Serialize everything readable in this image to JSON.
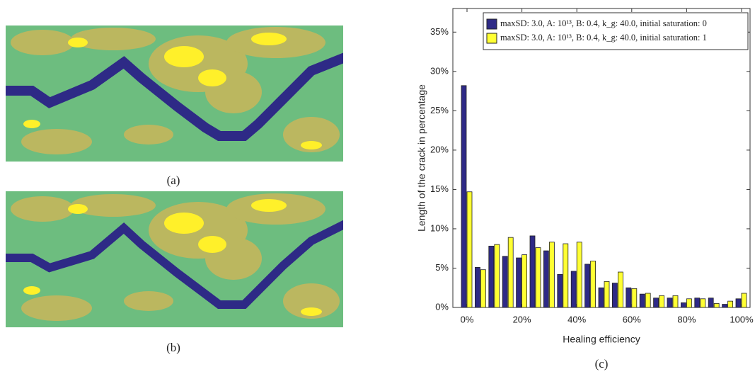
{
  "captions": [
    "(a)",
    "(b)",
    "(c)"
  ],
  "chart_data": {
    "type": "bar",
    "xlabel": "Healing efficiency",
    "ylabel": "Length of the crack in percentage",
    "categories": [
      "0%",
      null,
      null,
      null,
      "20%",
      null,
      null,
      null,
      "40%",
      null,
      null,
      null,
      "60%",
      null,
      null,
      null,
      "80%",
      null,
      null,
      null,
      "100%"
    ],
    "series": [
      {
        "name": "maxSD: 3.0, A: 10¹³, B: 0.4, k_g: 40.0, initial saturation: 0",
        "color": "#2e2a86",
        "values": [
          28.2,
          5.1,
          7.8,
          6.5,
          6.3,
          9.1,
          7.2,
          4.2,
          4.6,
          5.5,
          2.5,
          3.1,
          2.5,
          1.7,
          1.2,
          1.2,
          0.6,
          1.2,
          1.2,
          0.4,
          1.1
        ]
      },
      {
        "name": "maxSD: 3.0, A: 10¹³, B: 0.4, k_g: 40.0, initial saturation: 1",
        "color": "#ffff33",
        "values": [
          14.7,
          4.8,
          8.0,
          8.9,
          6.7,
          7.6,
          8.3,
          8.1,
          8.3,
          5.9,
          3.3,
          4.5,
          2.4,
          1.8,
          1.5,
          1.5,
          1.1,
          1.1,
          0.5,
          0.8,
          1.8
        ]
      }
    ],
    "ylim": [
      0,
      38
    ],
    "yticks": [
      {
        "value": 0,
        "label": "0%"
      },
      {
        "value": 5,
        "label": "5%"
      },
      {
        "value": 10,
        "label": "10%"
      },
      {
        "value": 15,
        "label": "15%"
      },
      {
        "value": 20,
        "label": "20%"
      },
      {
        "value": 25,
        "label": "25%"
      },
      {
        "value": 30,
        "label": "30%"
      },
      {
        "value": 35,
        "label": "35%"
      }
    ],
    "grid": false,
    "legend": "top-right"
  }
}
